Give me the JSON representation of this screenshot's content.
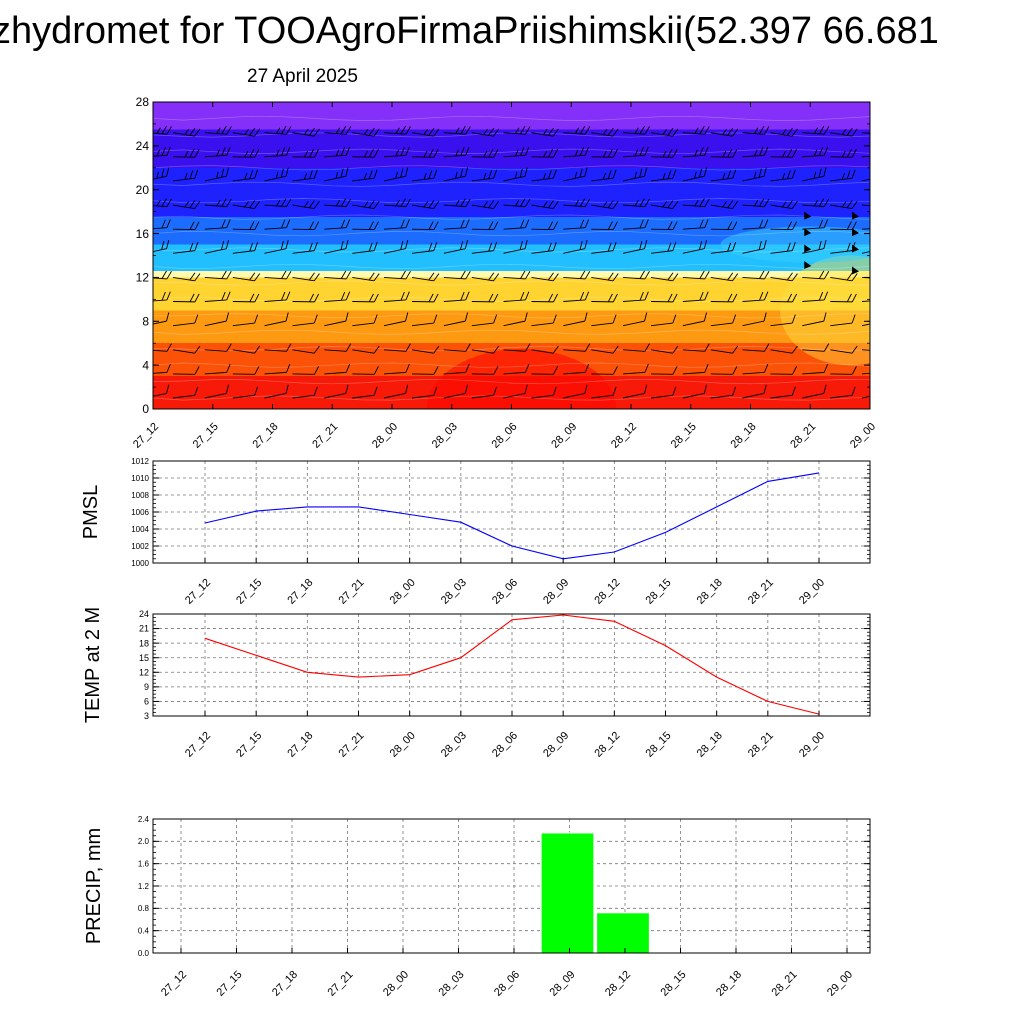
{
  "header": {
    "title": "zhydromet for TOOAgroFirmaPriishimskii(52.397 66.681",
    "date": "27 April 2025"
  },
  "chart_data": [
    {
      "type": "heatmap",
      "title": "",
      "x": [
        "27_12",
        "27_15",
        "27_18",
        "27_21",
        "28_00",
        "28_03",
        "28_06",
        "28_09",
        "28_12",
        "28_15",
        "28_18",
        "28_21",
        "29_00"
      ],
      "y_ticks": [
        0,
        4,
        8,
        12,
        16,
        20,
        24,
        28
      ],
      "ylim": [
        0,
        28
      ],
      "ylabel": "",
      "color_bands": [
        {
          "y0": 0,
          "y1": 3,
          "color": "#f81a08"
        },
        {
          "y0": 3,
          "y1": 6,
          "color": "#fb5208"
        },
        {
          "y0": 6,
          "y1": 9,
          "color": "#fd9a12"
        },
        {
          "y0": 9,
          "y1": 12,
          "color": "#ffd330"
        },
        {
          "y0": 12,
          "y1": 12.6,
          "color": "#fffbb0"
        },
        {
          "y0": 12.6,
          "y1": 15,
          "color": "#22bfff"
        },
        {
          "y0": 15,
          "y1": 17.5,
          "color": "#1c6dff"
        },
        {
          "y0": 17.5,
          "y1": 22,
          "color": "#1e22ff"
        },
        {
          "y0": 22,
          "y1": 25.5,
          "color": "#3a10ee"
        },
        {
          "y0": 25.5,
          "y1": 28,
          "color": "#8430f8"
        }
      ],
      "grid": false,
      "wind_barbs": true
    },
    {
      "type": "line",
      "x": [
        "27_12",
        "27_15",
        "27_18",
        "27_21",
        "28_00",
        "28_03",
        "28_06",
        "28_09",
        "28_12",
        "28_15",
        "28_18",
        "28_21",
        "29_00"
      ],
      "series": [
        {
          "values": [
            1004.7,
            1006.1,
            1006.6,
            1006.6,
            1005.7,
            1004.8,
            1002.0,
            1000.5,
            1001.3,
            1003.6,
            1006.6,
            1009.6,
            1010.6
          ],
          "color": "#0000ff"
        }
      ],
      "ylabel": "PMSL",
      "ylim": [
        1000,
        1012
      ],
      "y_ticks": [
        1000,
        1002,
        1004,
        1006,
        1008,
        1010,
        1012
      ],
      "grid": true
    },
    {
      "type": "line",
      "x": [
        "27_12",
        "27_15",
        "27_18",
        "27_21",
        "28_00",
        "28_03",
        "28_06",
        "28_09",
        "28_12",
        "28_15",
        "28_18",
        "28_21",
        "29_00"
      ],
      "series": [
        {
          "values": [
            19.0,
            15.5,
            12.0,
            11.0,
            11.5,
            15.0,
            22.8,
            23.8,
            22.5,
            17.5,
            11.0,
            6.0,
            3.4
          ],
          "color": "#ff0000"
        }
      ],
      "ylabel": "TEMP at 2 M",
      "ylim": [
        3,
        24
      ],
      "y_ticks": [
        3,
        6,
        9,
        12,
        15,
        18,
        21,
        24
      ],
      "grid": true
    },
    {
      "type": "bar",
      "x": [
        "27_12",
        "27_15",
        "27_18",
        "27_21",
        "28_00",
        "28_03",
        "28_06",
        "28_09",
        "28_12",
        "28_15",
        "28_18",
        "28_21",
        "29_00"
      ],
      "series": [
        {
          "values": [
            0,
            0,
            0,
            0,
            0,
            0,
            0,
            2.15,
            0.72,
            0,
            0,
            0,
            0
          ],
          "color": "#00ff00"
        }
      ],
      "ylabel": "PRECIP, mm",
      "ylim": [
        0,
        2.4
      ],
      "y_ticks": [
        "0.0",
        "0.4",
        "0.8",
        "1.2",
        "1.6",
        "2.0",
        "2.4"
      ],
      "grid": true
    }
  ]
}
